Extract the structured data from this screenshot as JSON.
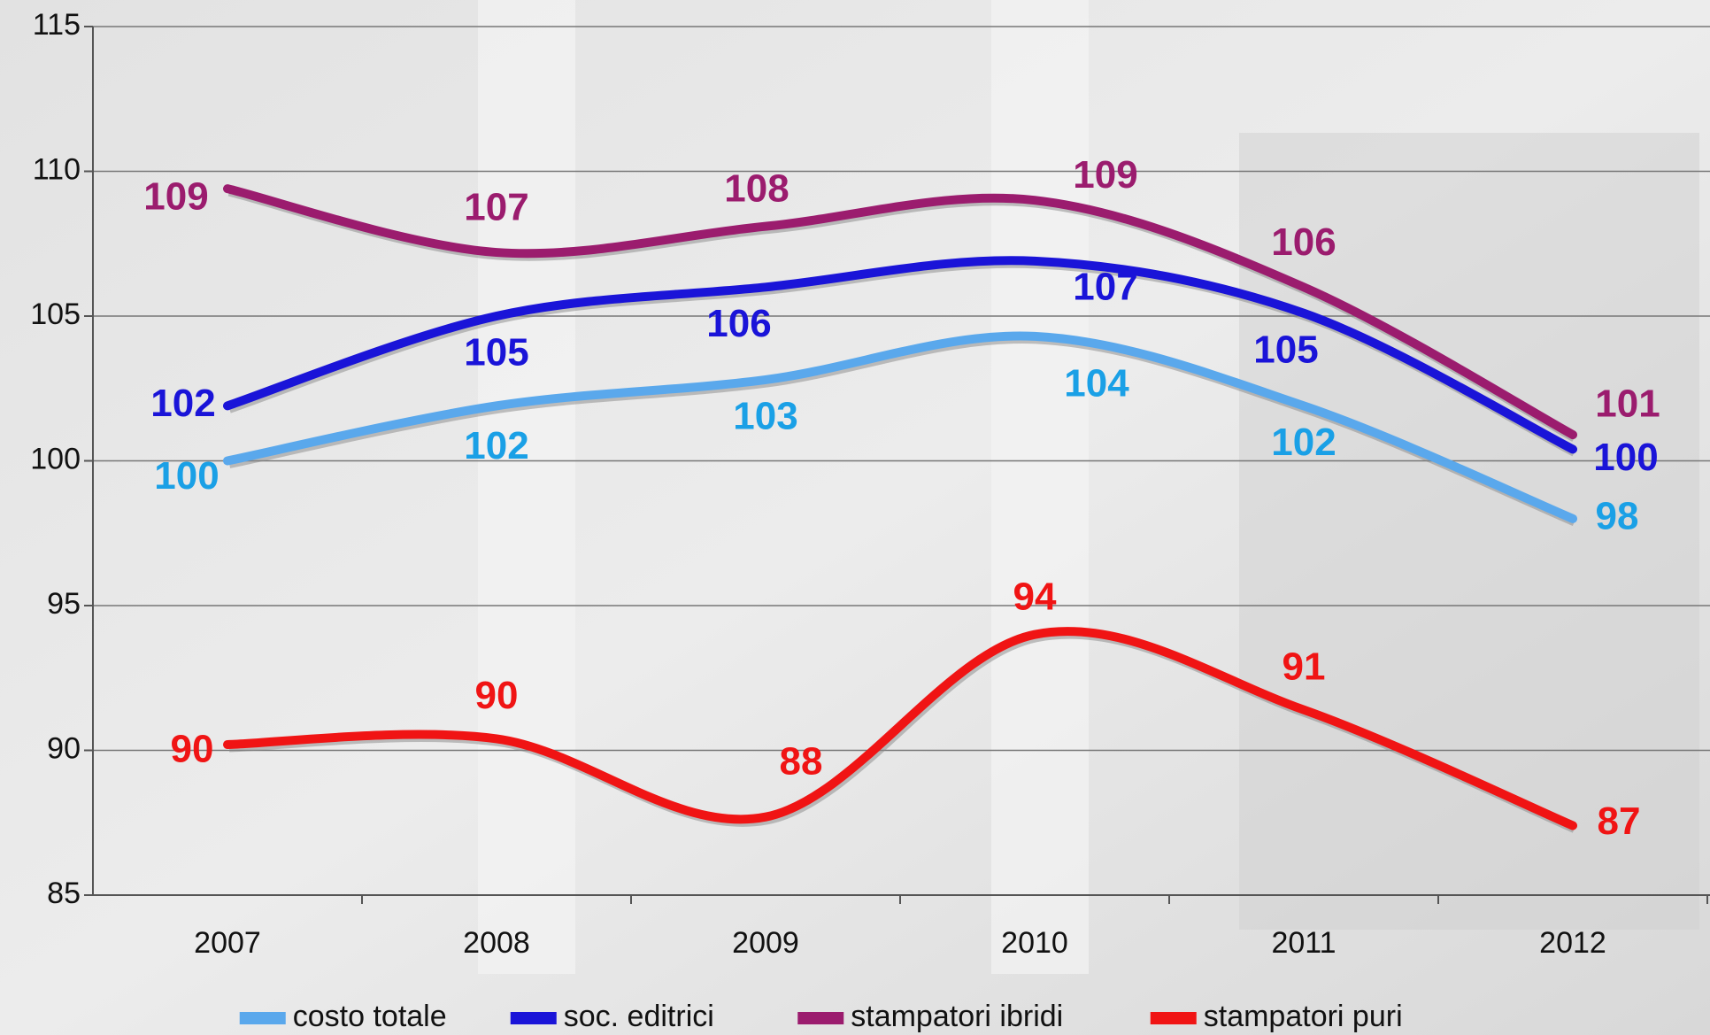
{
  "chart_data": {
    "type": "line",
    "categories": [
      "2007",
      "2008",
      "2009",
      "2010",
      "2011",
      "2012"
    ],
    "series": [
      {
        "name": "costo totale",
        "color": "#5aa8ec",
        "label_color": "#1aa0e6",
        "values": [
          100.0,
          101.9,
          102.8,
          104.3,
          101.9,
          98.0
        ],
        "value_labels": [
          "100",
          "102",
          "103",
          "104",
          "102",
          "98"
        ]
      },
      {
        "name": "soc. editrici",
        "color": "#1a14d8",
        "label_color": "#1a14d8",
        "values": [
          101.9,
          105.0,
          106.0,
          106.9,
          105.1,
          100.4
        ],
        "value_labels": [
          "102",
          "105",
          "106",
          "107",
          "105",
          "100"
        ]
      },
      {
        "name": "stampatori ibridi",
        "color": "#9b1c6e",
        "label_color": "#9b1c6e",
        "values": [
          109.4,
          107.2,
          108.1,
          109.0,
          106.0,
          100.9
        ],
        "value_labels": [
          "109",
          "107",
          "108",
          "109",
          "106",
          "101"
        ]
      },
      {
        "name": "stampatori puri",
        "color": "#f01414",
        "label_color": "#f01414",
        "values": [
          90.2,
          90.4,
          87.7,
          94.0,
          91.4,
          87.4
        ],
        "value_labels": [
          "90",
          "90",
          "88",
          "94",
          "91",
          "87"
        ]
      }
    ],
    "ylim": [
      85,
      115
    ],
    "yticks": [
      85,
      90,
      95,
      100,
      105,
      110,
      115
    ],
    "grid": true,
    "legend": "bottom"
  }
}
